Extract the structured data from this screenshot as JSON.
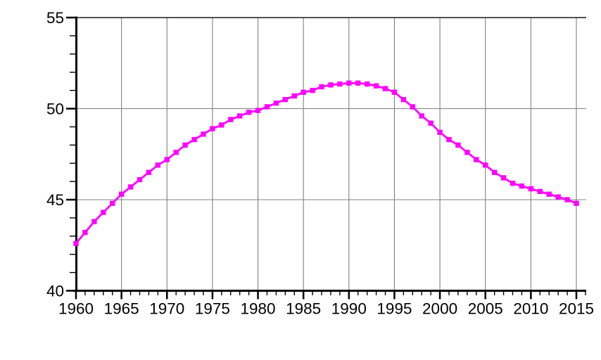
{
  "chart_data": {
    "type": "line",
    "title": "",
    "xlabel": "",
    "ylabel": "",
    "xlim": [
      1960,
      2016.1
    ],
    "ylim": [
      40,
      55
    ],
    "grid": true,
    "grid_color": "#808080",
    "axis_color": "#000000",
    "background_color": "#ffffff",
    "legend": "none",
    "x_tick_labels": [
      "1960",
      "1965",
      "1970",
      "1975",
      "1980",
      "1985",
      "1990",
      "1995",
      "2000",
      "2005",
      "2010",
      "2015"
    ],
    "y_tick_labels": [
      "40",
      "45",
      "50",
      "55"
    ],
    "x_minor_tick_step": 1,
    "y_minor_tick_step": 1,
    "series": [
      {
        "name": "value",
        "color": "#ff00ff",
        "marker": "square",
        "x": [
          1960,
          1961,
          1962,
          1963,
          1964,
          1965,
          1966,
          1967,
          1968,
          1969,
          1970,
          1971,
          1972,
          1973,
          1974,
          1975,
          1976,
          1977,
          1978,
          1979,
          1980,
          1981,
          1982,
          1983,
          1984,
          1985,
          1986,
          1987,
          1988,
          1989,
          1990,
          1991,
          1992,
          1993,
          1994,
          1995,
          1996,
          1997,
          1998,
          1999,
          2000,
          2001,
          2002,
          2003,
          2004,
          2005,
          2006,
          2007,
          2008,
          2009,
          2010,
          2011,
          2012,
          2013,
          2014,
          2015
        ],
        "values": [
          42.6,
          43.2,
          43.8,
          44.3,
          44.8,
          45.3,
          45.7,
          46.1,
          46.5,
          46.9,
          47.2,
          47.6,
          48.0,
          48.3,
          48.6,
          48.9,
          49.1,
          49.4,
          49.6,
          49.8,
          49.9,
          50.1,
          50.3,
          50.5,
          50.7,
          50.9,
          51.0,
          51.2,
          51.3,
          51.35,
          51.4,
          51.4,
          51.35,
          51.25,
          51.1,
          50.9,
          50.5,
          50.1,
          49.6,
          49.2,
          48.7,
          48.3,
          48.0,
          47.6,
          47.2,
          46.9,
          46.5,
          46.2,
          45.9,
          45.75,
          45.6,
          45.45,
          45.3,
          45.15,
          45.0,
          44.8
        ]
      }
    ]
  }
}
